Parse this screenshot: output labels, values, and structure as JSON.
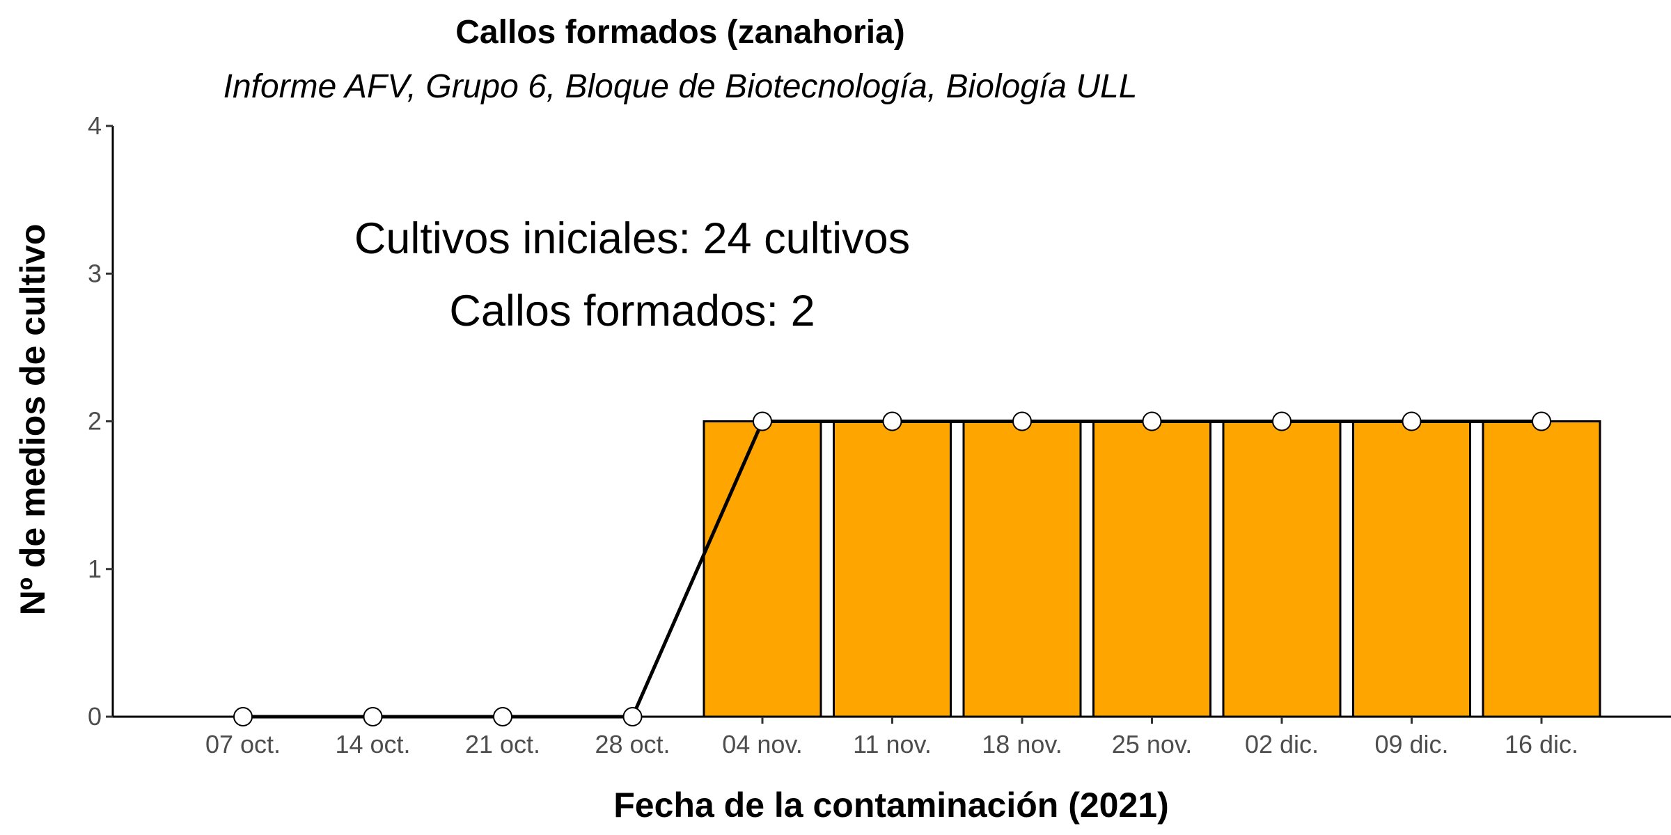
{
  "chart_data": {
    "type": "bar",
    "title": "Callos formados (zanahoria)",
    "subtitle": "Informe AFV, Grupo 6, Bloque de Biotecnología, Biología ULL",
    "xlabel": "Fecha de la contaminación (2021)",
    "ylabel": "Nº de medios de cultivo",
    "categories": [
      "07 oct.",
      "14 oct.",
      "21 oct.",
      "28 oct.",
      "04 nov.",
      "11 nov.",
      "18 nov.",
      "25 nov.",
      "02 dic.",
      "09 dic.",
      "16 dic."
    ],
    "values": [
      0,
      0,
      0,
      0,
      2,
      2,
      2,
      2,
      2,
      2,
      2
    ],
    "overlay": {
      "type": "line",
      "markers": "circle",
      "values": [
        0,
        0,
        0,
        0,
        2,
        2,
        2,
        2,
        2,
        2,
        2
      ]
    },
    "ylim": [
      0,
      4
    ],
    "yticks": [
      0,
      1,
      2,
      3,
      4
    ],
    "grid": false,
    "annotations": [
      "Cultivos iniciales: 24 cultivos",
      "Callos formados: 2"
    ],
    "colors": {
      "bar_fill": "#FFA500",
      "bar_stroke": "#000000",
      "line": "#000000",
      "marker_fill": "#FFFFFF",
      "marker_stroke": "#000000"
    }
  }
}
